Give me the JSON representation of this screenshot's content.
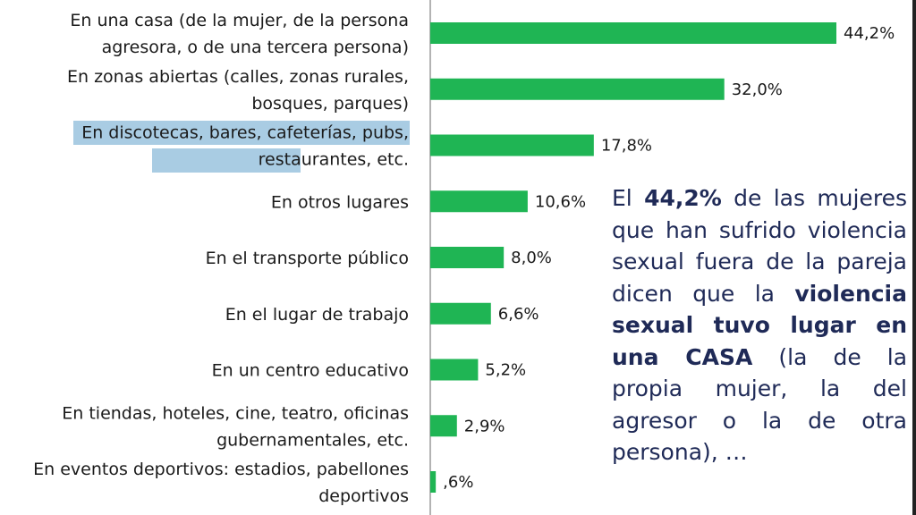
{
  "chart_data": {
    "type": "bar",
    "orientation": "horizontal",
    "categories": [
      [
        "En una casa (de la mujer, de la persona",
        "agresora, o de una tercera persona)"
      ],
      [
        "En zonas abiertas (calles, zonas rurales,",
        "bosques, parques)"
      ],
      [
        "En discotecas, bares, cafeterías, pubs,",
        "restaurantes, etc."
      ],
      [
        "En otros lugares"
      ],
      [
        "En el transporte público"
      ],
      [
        "En el lugar de trabajo"
      ],
      [
        "En un centro educativo"
      ],
      [
        "En tiendas, hoteles, cine, teatro, oficinas",
        "gubernamentales, etc."
      ],
      [
        "En eventos deportivos: estadios, pabellones",
        "deportivos"
      ]
    ],
    "values": [
      44.2,
      32.0,
      17.8,
      10.6,
      8.0,
      6.6,
      5.2,
      2.9,
      0.6
    ],
    "value_labels": [
      "44,2%",
      "32,0%",
      "17,8%",
      "10,6%",
      "8,0%",
      "6,6%",
      "5,2%",
      "2,9%",
      ",6%"
    ],
    "xlim": [
      0,
      48
    ],
    "title": "",
    "xlabel": "",
    "ylabel": "",
    "grid": false,
    "legend": "none",
    "bar_color": "#1fb554",
    "axis_color": "#9a9a9a",
    "highlight_color": "#a9cce3"
  },
  "note": {
    "p1": "El ",
    "b1": "44,2%",
    "p2": " de las mujeres que han sufrido violencia sexual fuera de la pareja dicen que la ",
    "b2": "violencia sexual tuvo lugar en una CASA",
    "p3": " (la de la propia mujer, la del agresor o la de otra persona), …"
  }
}
